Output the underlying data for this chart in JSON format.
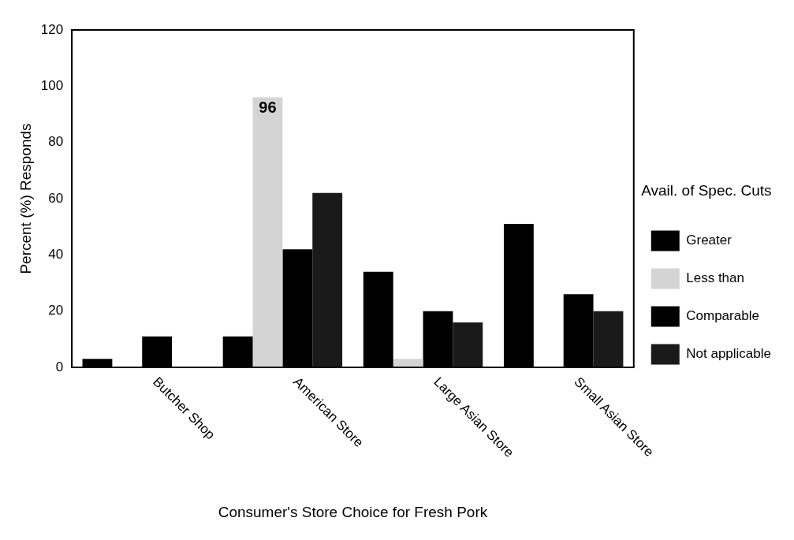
{
  "chart_data": {
    "type": "bar",
    "xlabel": "Consumer's Store Choice for Fresh Pork",
    "ylabel": "Percent (%) Responds",
    "legend_title": "Avail. of Spec. Cuts",
    "categories": [
      "Butcher Shop",
      "American Store",
      "Large Asian Store",
      "Small Asian Store"
    ],
    "series": [
      {
        "name": "Greater",
        "color": "#000000",
        "values": [
          3,
          11,
          34,
          51
        ]
      },
      {
        "name": "Less than",
        "color": "#d4d4d4",
        "values": [
          0,
          96,
          3,
          0
        ],
        "value_labels": [
          null,
          "96",
          null,
          null
        ]
      },
      {
        "name": "Comparable",
        "color": "#000000",
        "values": [
          11,
          42,
          20,
          26
        ]
      },
      {
        "name": "Not applicable",
        "color": "#1a1a1a",
        "values": [
          0,
          62,
          16,
          20
        ]
      }
    ],
    "ylim": [
      0,
      120
    ],
    "yticks": [
      0,
      20,
      40,
      60,
      80,
      100,
      120
    ],
    "grid": false,
    "legend": "right"
  }
}
